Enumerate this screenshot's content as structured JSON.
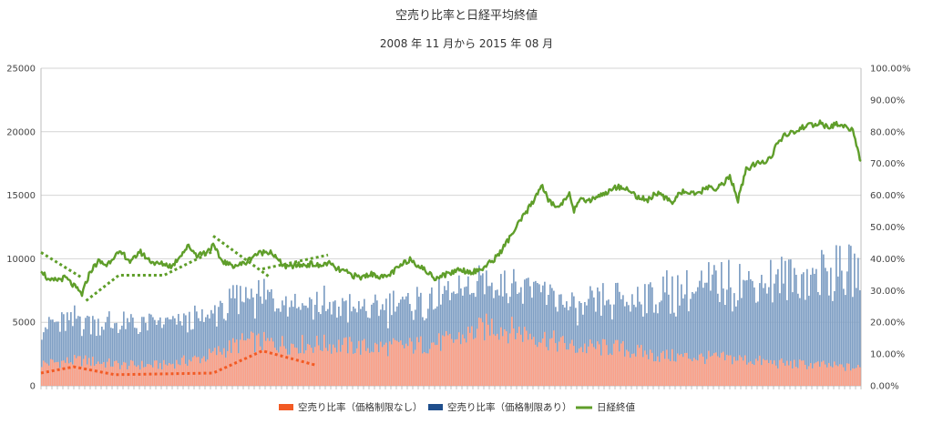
{
  "chart_data": {
    "type": "bar",
    "title": "空売り比率と日経平均終値",
    "subtitle": "2008 年 11 月から 2015 年 08 月",
    "x_range": [
      "2008-11",
      "2015-08"
    ],
    "ylim_left": [
      0,
      25000
    ],
    "ylim_right": [
      0,
      100
    ],
    "y_ticks_left": [
      "0",
      "5000",
      "10000",
      "15000",
      "20000",
      "25000"
    ],
    "y_ticks_right": [
      "0.00%",
      "10.00%",
      "20.00%",
      "30.00%",
      "40.00%",
      "50.00%",
      "60.00%",
      "70.00%",
      "80.00%",
      "90.00%",
      "100.00%"
    ],
    "grid": true,
    "legend_position": "bottom",
    "series": [
      {
        "name": "空売り比率（価格制限なし）",
        "kind": "bar",
        "axis": "right",
        "color": "#fca086",
        "frac": [
          0.0,
          0.05,
          0.1,
          0.15,
          0.2,
          0.25,
          0.3,
          0.35,
          0.4,
          0.45,
          0.5,
          0.55,
          0.6,
          0.65,
          0.7,
          0.75,
          0.8,
          0.85,
          0.9,
          0.95,
          1.0
        ],
        "values": [
          7,
          8,
          6.5,
          6.5,
          9,
          14,
          13,
          13,
          12,
          12.5,
          14,
          19,
          16,
          12,
          12,
          9.5,
          9,
          8.5,
          7,
          6.5,
          5.5
        ]
      },
      {
        "name": "空売り比率（価格制限あり）",
        "kind": "bar",
        "axis": "right",
        "color": "#7f9fc4",
        "frac": [
          0.0,
          0.05,
          0.1,
          0.15,
          0.2,
          0.25,
          0.3,
          0.35,
          0.4,
          0.45,
          0.5,
          0.55,
          0.6,
          0.65,
          0.7,
          0.75,
          0.8,
          0.85,
          0.9,
          0.95,
          1.0
        ],
        "values": [
          12,
          12.5,
          12.5,
          13,
          12,
          14,
          15,
          12,
          12,
          13,
          14,
          14,
          16,
          12,
          14.5,
          19,
          21,
          24,
          26,
          28,
          31
        ]
      },
      {
        "name": "日経終値",
        "kind": "line",
        "axis": "left",
        "color": "#5f9e2a",
        "frac": [
          0.0,
          0.01,
          0.03,
          0.05,
          0.06,
          0.07,
          0.08,
          0.09,
          0.1,
          0.11,
          0.12,
          0.13,
          0.14,
          0.15,
          0.16,
          0.17,
          0.18,
          0.19,
          0.2,
          0.21,
          0.22,
          0.23,
          0.24,
          0.25,
          0.26,
          0.27,
          0.28,
          0.29,
          0.3,
          0.31,
          0.32,
          0.33,
          0.34,
          0.35,
          0.36,
          0.37,
          0.38,
          0.39,
          0.4,
          0.41,
          0.42,
          0.43,
          0.44,
          0.45,
          0.46,
          0.47,
          0.48,
          0.49,
          0.5,
          0.51,
          0.52,
          0.53,
          0.54,
          0.55,
          0.56,
          0.57,
          0.58,
          0.59,
          0.6,
          0.61,
          0.62,
          0.63,
          0.64,
          0.645,
          0.65,
          0.66,
          0.67,
          0.68,
          0.69,
          0.7,
          0.71,
          0.72,
          0.73,
          0.74,
          0.75,
          0.76,
          0.77,
          0.78,
          0.79,
          0.8,
          0.81,
          0.82,
          0.83,
          0.84,
          0.85,
          0.86,
          0.87,
          0.88,
          0.89,
          0.9,
          0.91,
          0.92,
          0.93,
          0.94,
          0.95,
          0.96,
          0.97,
          0.98,
          0.99,
          1.0
        ],
        "values": [
          9200,
          8200,
          8500,
          7200,
          9000,
          9800,
          9500,
          10300,
          10400,
          9700,
          10600,
          10000,
          9600,
          9600,
          9400,
          10300,
          11000,
          10300,
          10500,
          11000,
          9900,
          9500,
          9500,
          9700,
          10300,
          10500,
          10600,
          9800,
          9300,
          9500,
          9500,
          9600,
          9400,
          9700,
          9200,
          9000,
          8700,
          8500,
          8800,
          8700,
          8500,
          9000,
          9500,
          10000,
          9500,
          9000,
          8500,
          8700,
          8900,
          9200,
          9000,
          9000,
          9300,
          9800,
          10500,
          11500,
          12500,
          13500,
          14500,
          15800,
          14500,
          14000,
          14800,
          15200,
          13800,
          14700,
          14600,
          15000,
          15200,
          15600,
          15700,
          15200,
          14800,
          14600,
          15200,
          14800,
          14500,
          15300,
          15200,
          15000,
          15600,
          15500,
          15800,
          16500,
          14600,
          17000,
          17400,
          17600,
          18000,
          19300,
          19800,
          20000,
          20400,
          20500,
          20700,
          20300,
          20600,
          20400,
          20200,
          17500
        ]
      }
    ],
    "trendlines": [
      {
        "color": "#f25a24",
        "axis": "right",
        "frac": [
          0.0,
          0.04,
          0.09,
          0.21,
          0.27,
          0.335
        ],
        "values": [
          4,
          6,
          3.5,
          4,
          11,
          6.5
        ]
      },
      {
        "color": "#5f9e2a",
        "axis": "left",
        "frac": [
          0.0,
          0.05
        ],
        "values": [
          10500,
          8500
        ]
      },
      {
        "color": "#5f9e2a",
        "axis": "left",
        "frac": [
          0.055,
          0.095,
          0.15,
          0.21
        ],
        "values": [
          6700,
          8700,
          8700,
          10600
        ]
      },
      {
        "color": "#5f9e2a",
        "axis": "left",
        "frac": [
          0.21,
          0.28
        ],
        "values": [
          11800,
          8500
        ]
      },
      {
        "color": "#5f9e2a",
        "axis": "left",
        "frac": [
          0.27,
          0.35
        ],
        "values": [
          9200,
          10300
        ]
      }
    ]
  }
}
